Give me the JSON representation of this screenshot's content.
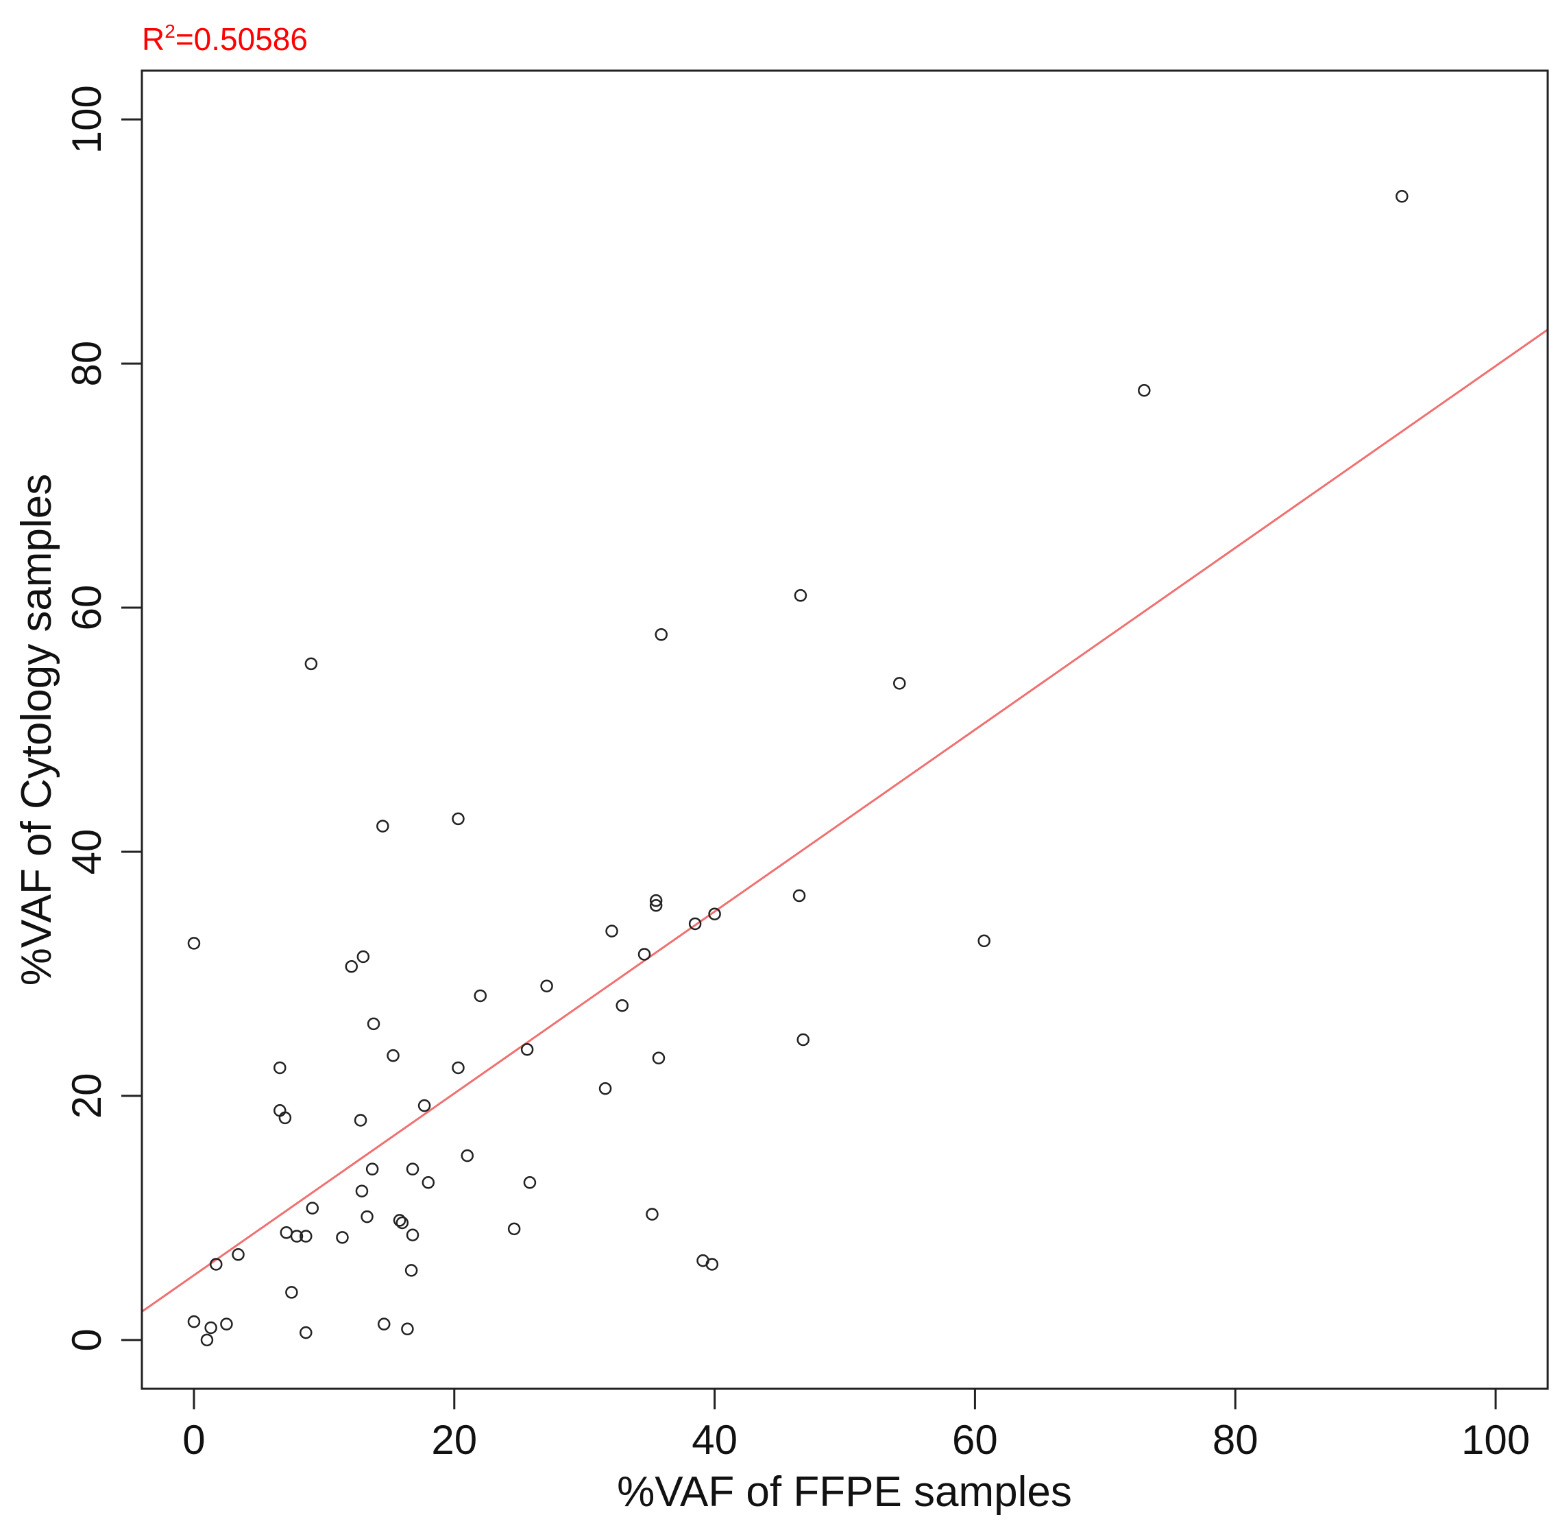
{
  "chart_data": {
    "type": "scatter",
    "title": "",
    "annotation": {
      "base": "R",
      "superscript": "2",
      "rest": "=0.50586",
      "color": "#ff0000"
    },
    "xlabel": "%VAF of FFPE samples",
    "ylabel": "%VAF of Cytology samples",
    "xlim": [
      -4,
      104
    ],
    "ylim": [
      -4,
      104
    ],
    "xticks": [
      0,
      20,
      40,
      60,
      80,
      100
    ],
    "yticks": [
      0,
      20,
      40,
      60,
      80,
      100
    ],
    "grid": false,
    "legend": "none",
    "point_color": "#222222",
    "fit_line": {
      "intercept": 5.3,
      "slope": 0.745,
      "color": "#f07070"
    },
    "series": [
      {
        "points": [
          {
            "x": 0.0,
            "y": 32.5
          },
          {
            "x": 0.0,
            "y": 1.5
          },
          {
            "x": 1.0,
            "y": 0.0
          },
          {
            "x": 1.3,
            "y": 1.0
          },
          {
            "x": 1.7,
            "y": 6.2
          },
          {
            "x": 2.5,
            "y": 1.3
          },
          {
            "x": 3.4,
            "y": 7.0
          },
          {
            "x": 6.6,
            "y": 22.3
          },
          {
            "x": 6.6,
            "y": 18.8
          },
          {
            "x": 7.0,
            "y": 18.2
          },
          {
            "x": 7.1,
            "y": 8.8
          },
          {
            "x": 7.5,
            "y": 3.9
          },
          {
            "x": 7.9,
            "y": 8.5
          },
          {
            "x": 8.6,
            "y": 8.5
          },
          {
            "x": 8.6,
            "y": 0.6
          },
          {
            "x": 9.0,
            "y": 55.4
          },
          {
            "x": 9.1,
            "y": 10.8
          },
          {
            "x": 11.4,
            "y": 8.4
          },
          {
            "x": 12.1,
            "y": 30.6
          },
          {
            "x": 12.8,
            "y": 18.0
          },
          {
            "x": 12.9,
            "y": 12.2
          },
          {
            "x": 13.0,
            "y": 31.4
          },
          {
            "x": 13.3,
            "y": 10.1
          },
          {
            "x": 13.7,
            "y": 14.0
          },
          {
            "x": 13.8,
            "y": 25.9
          },
          {
            "x": 14.5,
            "y": 42.1
          },
          {
            "x": 14.6,
            "y": 1.3
          },
          {
            "x": 15.3,
            "y": 23.3
          },
          {
            "x": 15.8,
            "y": 9.8
          },
          {
            "x": 16.0,
            "y": 9.6
          },
          {
            "x": 16.4,
            "y": 0.9
          },
          {
            "x": 16.7,
            "y": 5.7
          },
          {
            "x": 16.8,
            "y": 14.0
          },
          {
            "x": 16.8,
            "y": 8.6
          },
          {
            "x": 17.7,
            "y": 19.2
          },
          {
            "x": 18.0,
            "y": 12.9
          },
          {
            "x": 20.3,
            "y": 42.7
          },
          {
            "x": 20.3,
            "y": 22.3
          },
          {
            "x": 21.0,
            "y": 15.1
          },
          {
            "x": 22.0,
            "y": 28.2
          },
          {
            "x": 24.6,
            "y": 9.1
          },
          {
            "x": 25.6,
            "y": 23.8
          },
          {
            "x": 25.8,
            "y": 12.9
          },
          {
            "x": 27.1,
            "y": 29.0
          },
          {
            "x": 31.6,
            "y": 20.6
          },
          {
            "x": 32.1,
            "y": 33.5
          },
          {
            "x": 32.9,
            "y": 27.4
          },
          {
            "x": 34.6,
            "y": 31.6
          },
          {
            "x": 35.2,
            "y": 10.3
          },
          {
            "x": 35.5,
            "y": 36.0
          },
          {
            "x": 35.5,
            "y": 35.6
          },
          {
            "x": 35.7,
            "y": 23.1
          },
          {
            "x": 35.9,
            "y": 57.8
          },
          {
            "x": 38.5,
            "y": 34.1
          },
          {
            "x": 39.1,
            "y": 6.5
          },
          {
            "x": 39.8,
            "y": 6.2
          },
          {
            "x": 40.0,
            "y": 34.9
          },
          {
            "x": 46.5,
            "y": 36.4
          },
          {
            "x": 46.6,
            "y": 61.0
          },
          {
            "x": 46.8,
            "y": 24.6
          },
          {
            "x": 54.2,
            "y": 53.8
          },
          {
            "x": 60.7,
            "y": 32.7
          },
          {
            "x": 73.0,
            "y": 77.8
          },
          {
            "x": 92.8,
            "y": 93.7
          }
        ]
      }
    ]
  }
}
